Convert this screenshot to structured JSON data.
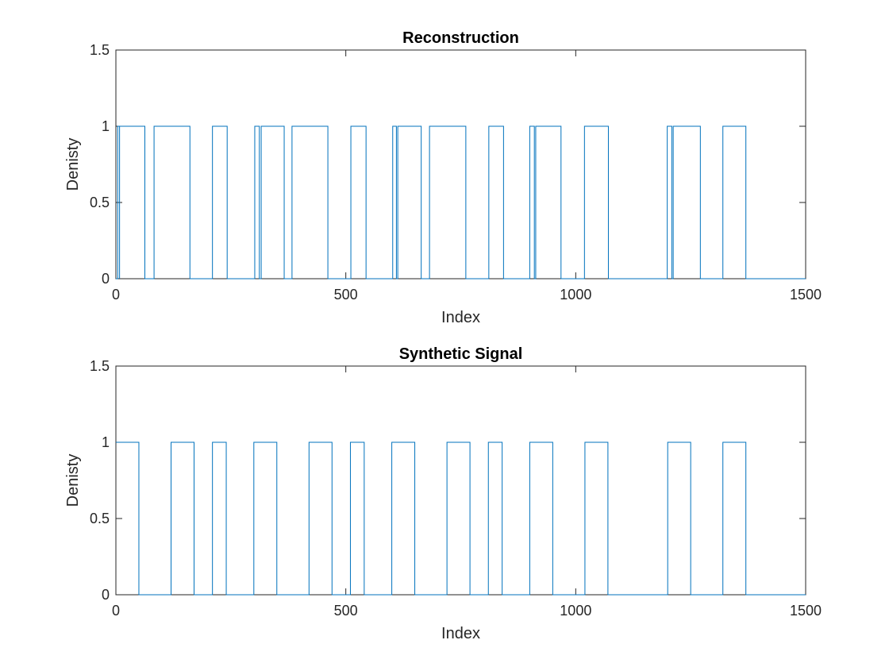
{
  "chart_data": [
    {
      "type": "line",
      "title": "Reconstruction",
      "xlabel": "Index",
      "ylabel": "Denisty",
      "xlim": [
        0,
        1500
      ],
      "ylim": [
        0,
        1.5
      ],
      "xticks": [
        0,
        500,
        1000,
        1500
      ],
      "yticks": [
        0,
        0.5,
        1,
        1.5
      ],
      "xtick_labels": [
        "0",
        "500",
        "1000",
        "1500"
      ],
      "ytick_labels": [
        "0",
        "0.5",
        "1",
        "1.5"
      ],
      "grid": false,
      "color": "#0072BD",
      "series": [
        {
          "intervals_at_1": [
            [
              4,
              8
            ],
            [
              8,
              63
            ],
            [
              83,
              161
            ],
            [
              210,
              242
            ],
            [
              302,
              312
            ],
            [
              316,
              366
            ],
            [
              383,
              461
            ],
            [
              511,
              544
            ],
            [
              602,
              610
            ],
            [
              613,
              664
            ],
            [
              682,
              761
            ],
            [
              811,
              843
            ],
            [
              900,
              910
            ],
            [
              913,
              968
            ],
            [
              1019,
              1071
            ],
            [
              1199,
              1209
            ],
            [
              1212,
              1271
            ],
            [
              1320,
              1370
            ]
          ]
        }
      ]
    },
    {
      "type": "line",
      "title": "Synthetic Signal",
      "xlabel": "Index",
      "ylabel": "Denisty",
      "xlim": [
        0,
        1500
      ],
      "ylim": [
        0,
        1.5
      ],
      "xticks": [
        0,
        500,
        1000,
        1500
      ],
      "yticks": [
        0,
        0.5,
        1,
        1.5
      ],
      "xtick_labels": [
        "0",
        "500",
        "1000",
        "1500"
      ],
      "ytick_labels": [
        "0",
        "0.5",
        "1",
        "1.5"
      ],
      "grid": false,
      "color": "#0072BD",
      "series": [
        {
          "intervals_at_1": [
            [
              0,
              50
            ],
            [
              120,
              170
            ],
            [
              210,
              240
            ],
            [
              300,
              350
            ],
            [
              420,
              470
            ],
            [
              510,
              540
            ],
            [
              600,
              650
            ],
            [
              720,
              770
            ],
            [
              810,
              840
            ],
            [
              900,
              950
            ],
            [
              1020,
              1070
            ],
            [
              1200,
              1250
            ],
            [
              1320,
              1370
            ]
          ]
        }
      ]
    }
  ]
}
